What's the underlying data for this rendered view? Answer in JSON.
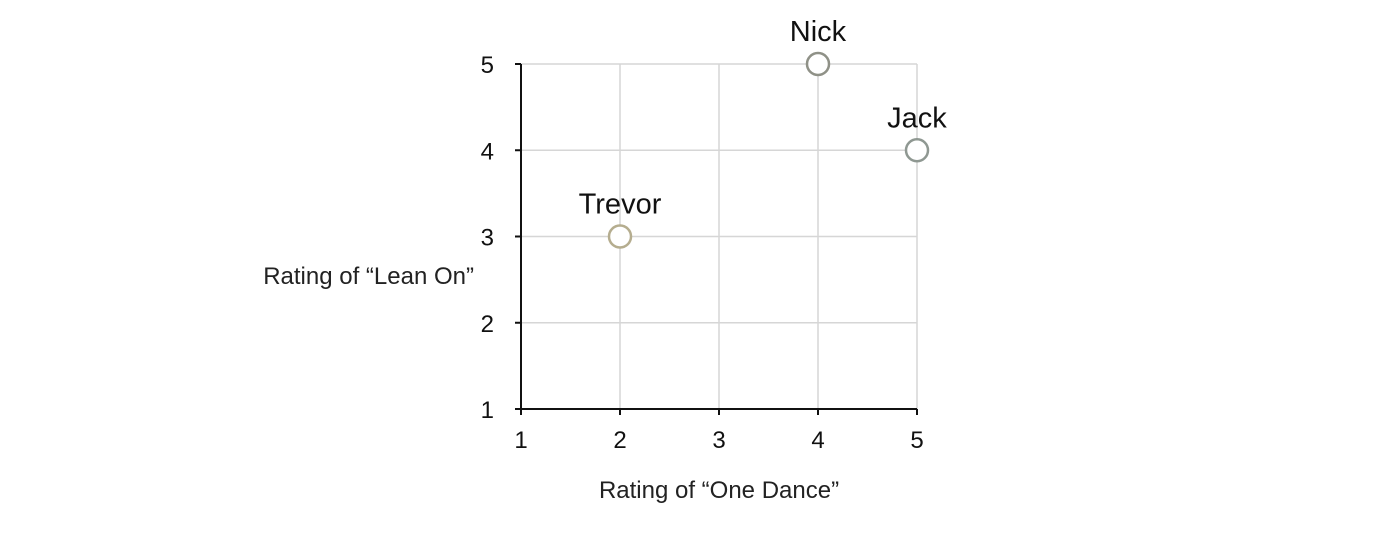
{
  "chart_data": {
    "type": "scatter",
    "xlabel": "Rating of “One Dance”",
    "ylabel": "Rating of “Lean On”",
    "xlim": [
      1,
      5
    ],
    "ylim": [
      1,
      5
    ],
    "x_ticks": [
      "1",
      "2",
      "3",
      "4",
      "5"
    ],
    "y_ticks": [
      "1",
      "2",
      "3",
      "4",
      "5"
    ],
    "grid": true,
    "points": [
      {
        "label": "Trevor",
        "x": 2,
        "y": 3,
        "color": "#b5ad8f"
      },
      {
        "label": "Nick",
        "x": 4,
        "y": 5,
        "color": "#8f9187"
      },
      {
        "label": "Jack",
        "x": 5,
        "y": 4,
        "color": "#8f9892"
      }
    ]
  }
}
